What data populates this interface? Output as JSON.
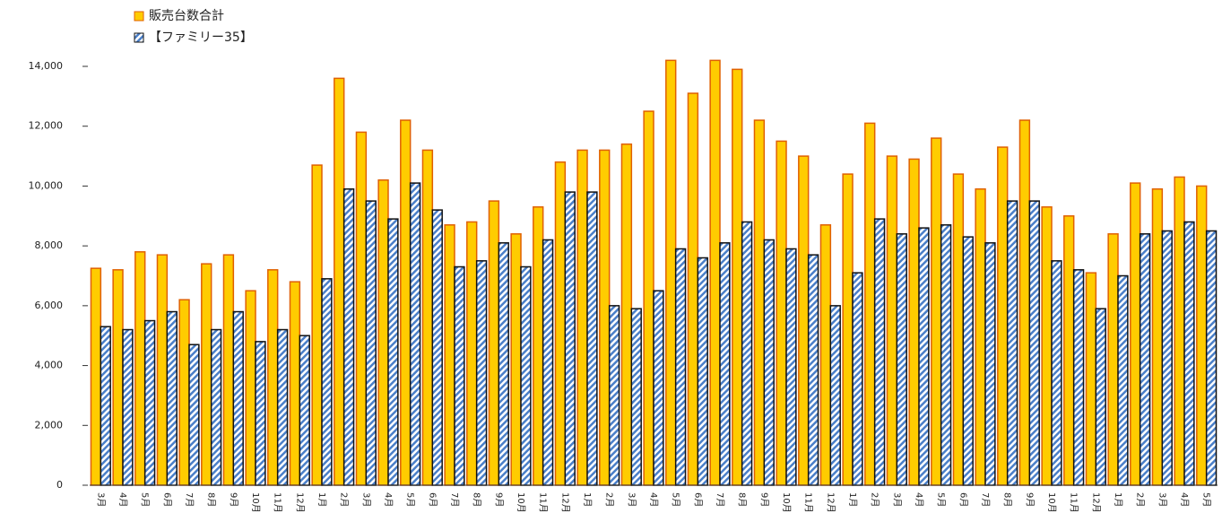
{
  "chart_data": {
    "type": "bar",
    "categories": [
      "3月",
      "4月",
      "5月",
      "6月",
      "7月",
      "8月",
      "9月",
      "10月",
      "11月",
      "12月",
      "1月",
      "2月",
      "3月",
      "4月",
      "5月",
      "6月",
      "7月",
      "8月",
      "9月",
      "10月",
      "11月",
      "12月",
      "1月",
      "2月",
      "3月",
      "4月",
      "5月",
      "6月",
      "7月",
      "8月",
      "9月",
      "10月",
      "11月",
      "12月",
      "1月",
      "2月",
      "3月",
      "4月",
      "5月",
      "6月",
      "7月",
      "8月",
      "9月",
      "10月",
      "11月",
      "12月",
      "1月",
      "2月",
      "3月",
      "4月",
      "5月"
    ],
    "series": [
      {
        "name": "販売台数合計",
        "color": "#ffcc00",
        "values": [
          7250,
          7200,
          7800,
          7700,
          6200,
          7400,
          7700,
          6500,
          7200,
          6800,
          10700,
          13600,
          11800,
          10200,
          12200,
          11200,
          8700,
          8800,
          9500,
          8400,
          9300,
          10800,
          11200,
          11200,
          11400,
          12500,
          14200,
          13100,
          14200,
          13900,
          12200,
          11500,
          11000,
          8700,
          10400,
          12100,
          11000,
          10900,
          11600,
          10400,
          9900,
          11300,
          12200,
          9300,
          9000,
          7100,
          8400,
          10100,
          9900,
          10300,
          10000
        ]
      },
      {
        "name": "【ファミリー35】",
        "color": "#4a7fc8",
        "values": [
          5300,
          5200,
          5500,
          5800,
          4700,
          5200,
          5800,
          4800,
          5200,
          5000,
          6900,
          9900,
          9500,
          8900,
          10100,
          9200,
          7300,
          7500,
          8100,
          7300,
          8200,
          9800,
          9800,
          6000,
          5900,
          6500,
          7900,
          7600,
          8100,
          8800,
          8200,
          7900,
          7700,
          6000,
          7100,
          8900,
          8400,
          8600,
          8700,
          8300,
          8100,
          9500,
          9500,
          7500,
          7200,
          5900,
          7000,
          8400,
          8500,
          8800,
          8500
        ]
      }
    ],
    "ylim": [
      0,
      14000
    ],
    "yticks": [
      0,
      {
        "value": 2000,
        "label": "2,000"
      },
      {
        "value": 4000,
        "label": "4,000"
      },
      {
        "value": 6000,
        "label": "6,000"
      },
      {
        "value": 8000,
        "label": "8,000"
      },
      {
        "value": 10000,
        "label": "10,000"
      },
      {
        "value": 12000,
        "label": "12,000"
      },
      {
        "value": 14000,
        "label": "14,000"
      }
    ]
  }
}
